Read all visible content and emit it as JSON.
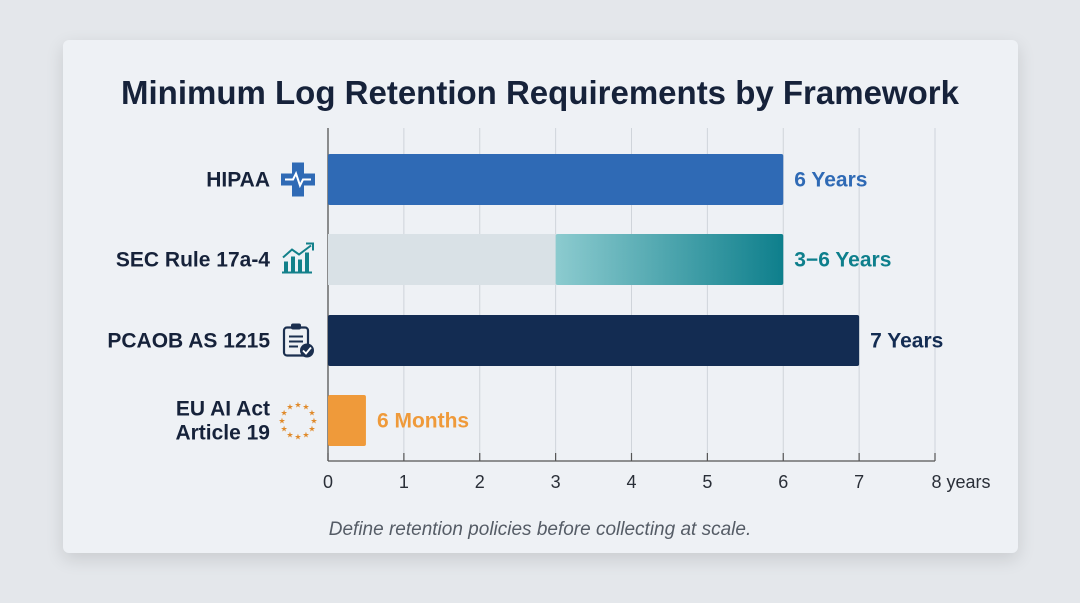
{
  "chart_data": {
    "type": "bar",
    "orientation": "horizontal",
    "title": "Minimum Log Retention Requirements by Framework",
    "categories": [
      {
        "lines": [
          "HIPAA"
        ],
        "icon": "medical-cross-heartbeat-icon"
      },
      {
        "lines": [
          "SEC Rule 17a-4"
        ],
        "icon": "growth-chart-icon"
      },
      {
        "lines": [
          "PCAOB AS 1215"
        ],
        "icon": "clipboard-check-icon"
      },
      {
        "lines": [
          "EU AI Act",
          "Article 19"
        ],
        "icon": "eu-stars-icon"
      }
    ],
    "bars": [
      {
        "start": 0,
        "end": 6,
        "label": "6 Years",
        "color": "#2f6ab5"
      },
      {
        "start": 3,
        "end": 6,
        "label": "3−6 Years",
        "color": "#0e7f8c",
        "range": true,
        "range_base_color": "#d9e1e6"
      },
      {
        "start": 0,
        "end": 7,
        "label": "7 Years",
        "color": "#132c52"
      },
      {
        "start": 0,
        "end": 0.5,
        "label": "6 Months",
        "color": "#ef9a3a"
      }
    ],
    "xlim": [
      0,
      8
    ],
    "ticks": [
      "0",
      "1",
      "2",
      "3",
      "4",
      "5",
      "6",
      "7",
      "8 years"
    ],
    "grid": true,
    "footnote": "Define retention policies before collecting at scale."
  }
}
